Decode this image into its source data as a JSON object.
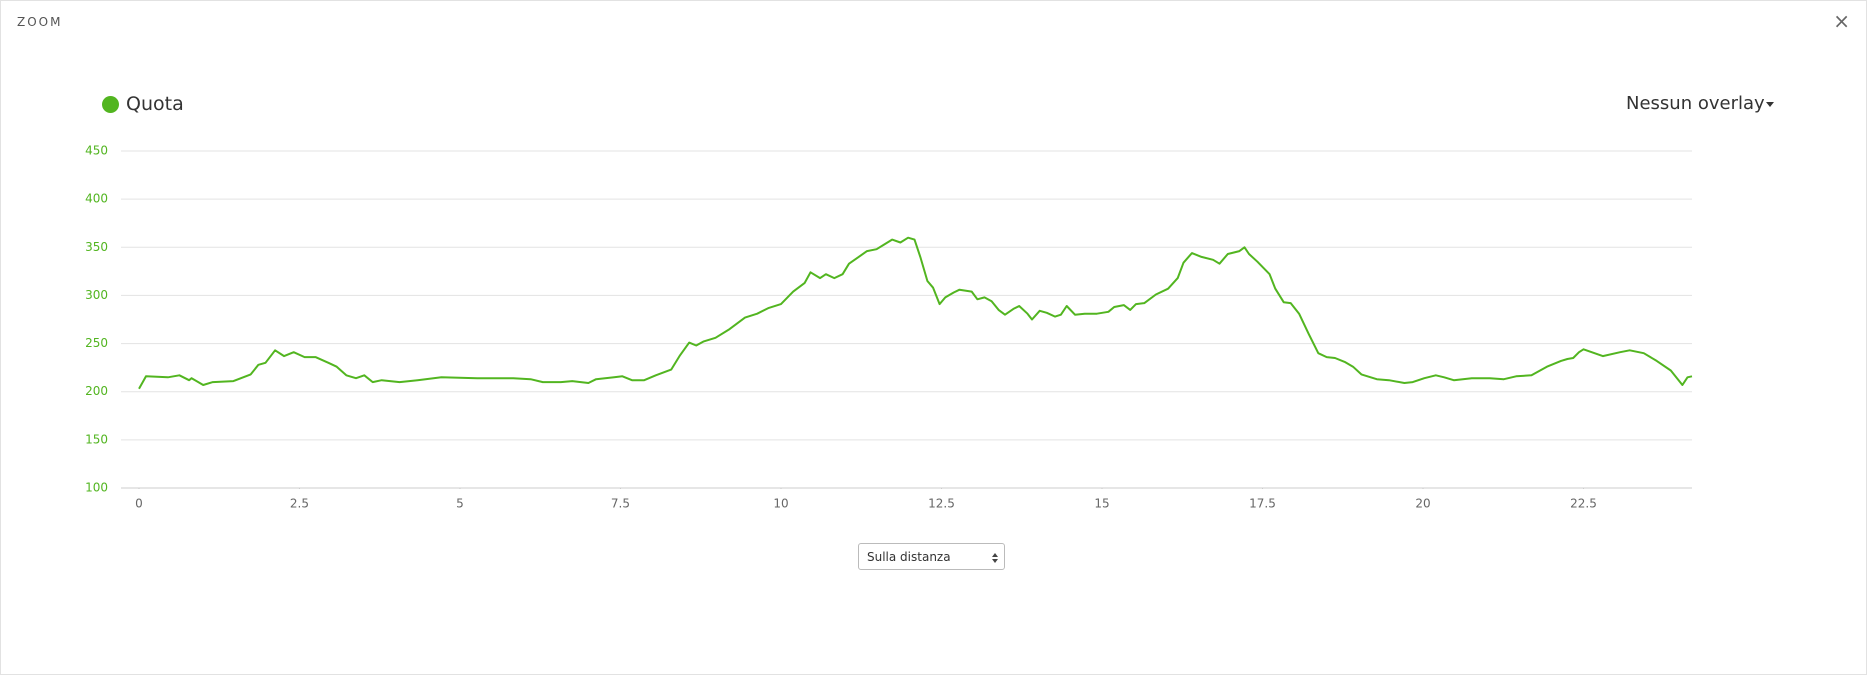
{
  "header": {
    "title": "ZOOM",
    "close": "×"
  },
  "overlay": "Nessun overlay",
  "select": "Sulla distanza",
  "chart_data": {
    "type": "line",
    "x": [
      0,
      0.11,
      0.45,
      0.63,
      0.78,
      0.82,
      1.0,
      1.15,
      1.47,
      1.74,
      1.86,
      1.97,
      2.12,
      2.26,
      2.41,
      2.58,
      2.75,
      2.95,
      3.08,
      3.23,
      3.38,
      3.51,
      3.64,
      3.78,
      4.06,
      4.34,
      4.71,
      5.27,
      5.83,
      6.1,
      6.29,
      6.57,
      6.75,
      7.0,
      7.12,
      7.4,
      7.53,
      7.68,
      7.87,
      8.05,
      8.29,
      8.42,
      8.57,
      8.68,
      8.79,
      8.98,
      9.2,
      9.44,
      9.63,
      9.81,
      10.0,
      10.19,
      10.37,
      10.46,
      10.61,
      10.7,
      10.83,
      10.96,
      11.06,
      11.21,
      11.34,
      11.49,
      11.61,
      11.73,
      11.86,
      11.98,
      12.08,
      12.17,
      12.28,
      12.37,
      12.47,
      12.56,
      12.69,
      12.78,
      12.97,
      13.06,
      13.17,
      13.28,
      13.39,
      13.49,
      13.62,
      13.71,
      13.84,
      13.91,
      14.03,
      14.14,
      14.27,
      14.36,
      14.45,
      14.58,
      14.73,
      14.92,
      15.1,
      15.19,
      15.34,
      15.44,
      15.53,
      15.66,
      15.84,
      16.03,
      16.18,
      16.27,
      16.4,
      16.55,
      16.73,
      16.83,
      16.96,
      17.14,
      17.22,
      17.29,
      17.42,
      17.61,
      17.7,
      17.83,
      17.94,
      18.07,
      18.22,
      18.37,
      18.5,
      18.63,
      18.78,
      18.91,
      19.04,
      19.28,
      19.47,
      19.71,
      19.84,
      20.02,
      20.2,
      20.33,
      20.48,
      20.76,
      21.04,
      21.26,
      21.45,
      21.69,
      21.93,
      22.15,
      22.25,
      22.34,
      22.43,
      22.5,
      22.8,
      23.07,
      23.22,
      23.44,
      23.64,
      23.86,
      24.04,
      24.12,
      24.19
    ],
    "series": [
      {
        "name": "Quota",
        "color": "#52b520",
        "values": [
          203,
          216,
          215,
          217,
          212,
          214,
          207,
          210,
          211,
          218,
          228,
          230,
          243,
          237,
          241,
          236,
          236,
          230,
          226,
          217,
          214,
          217,
          210,
          212,
          210,
          212,
          215,
          214,
          214,
          213,
          210,
          210,
          211,
          209,
          213,
          215,
          216,
          212,
          212,
          217,
          223,
          237,
          251,
          248,
          252,
          256,
          265,
          277,
          281,
          287,
          291,
          304,
          313,
          324,
          318,
          322,
          318,
          322,
          333,
          340,
          346,
          348,
          353,
          358,
          355,
          360,
          358,
          340,
          315,
          308,
          291,
          298,
          303,
          306,
          304,
          296,
          298,
          294,
          285,
          280,
          286,
          289,
          281,
          275,
          284,
          282,
          278,
          280,
          289,
          280,
          281,
          281,
          283,
          288,
          290,
          285,
          291,
          292,
          301,
          307,
          318,
          334,
          344,
          340,
          337,
          333,
          343,
          346,
          350,
          343,
          335,
          322,
          307,
          293,
          292,
          281,
          260,
          240,
          236,
          235,
          231,
          226,
          218,
          213,
          212,
          209,
          210,
          214,
          217,
          215,
          212,
          214,
          214,
          213,
          216,
          217,
          226,
          232,
          234,
          235,
          241,
          244,
          237,
          241,
          243,
          240,
          232,
          222,
          207,
          215,
          216
        ]
      }
    ],
    "xlim": [
      -0.28,
      24.19
    ],
    "ylim": [
      100,
      450
    ],
    "xticks": [
      0,
      2.5,
      5,
      7.5,
      10,
      12.5,
      15,
      17.5,
      20,
      22.5
    ],
    "yticks": [
      100,
      150,
      200,
      250,
      300,
      350,
      400,
      450
    ],
    "grid": true,
    "axis_color": "#52b520"
  }
}
